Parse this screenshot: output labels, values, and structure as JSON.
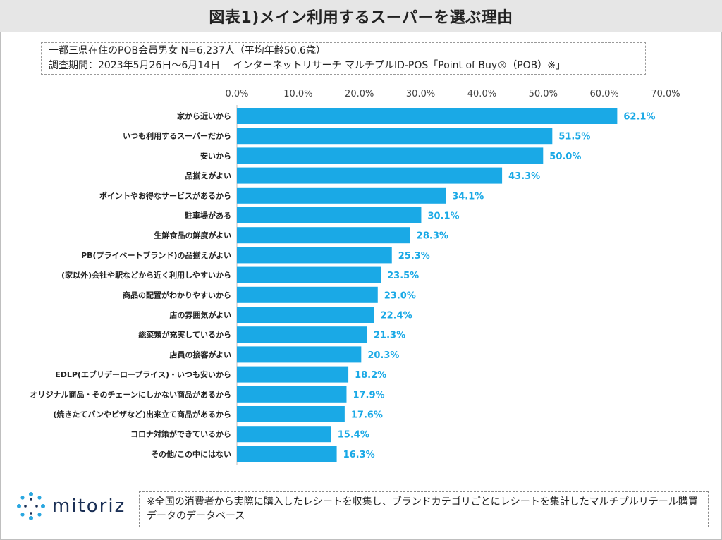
{
  "title": "図表1)メイン利用するスーパーを選ぶ理由",
  "info": {
    "line1": "一都三県在住のPOB会員男女 N=6,237人（平均年齢50.6歳）",
    "line2": "調査期間：2023年5月26日～6月14日　 インターネットリサーチ マルチプルID-POS「Point of Buy®（POB）※」"
  },
  "footer": {
    "logo_text": "mitoriz",
    "logo_icon": "dots-ring-icon",
    "note": "※全国の消費者から実際に購入したレシートを収集し、ブランドカテゴリごとにレシートを集計したマルチプルリテール購買データのデータベース"
  },
  "colors": {
    "bar": "#1aa9e6",
    "label": "#1aa9e6",
    "grid": "#d0d0d0",
    "title_bg": "#e6e6e6"
  },
  "chart_data": {
    "type": "bar",
    "orientation": "horizontal",
    "categories": [
      "家から近いから",
      "いつも利用するスーパーだから",
      "安いから",
      "品揃えがよい",
      "ポイントやお得なサービスがあるから",
      "駐車場がある",
      "生鮮食品の鮮度がよい",
      "PB(プライベートブランド)の品揃えがよい",
      "(家以外)会社や駅などから近く利用しやすいから",
      "商品の配置がわかりやすいから",
      "店の雰囲気がよい",
      "総菜類が充実しているから",
      "店員の接客がよい",
      "EDLP(エブリデーロープライス)・いつも安いから",
      "オリジナル商品・そのチェーンにしかない商品があるから",
      "(焼きたてパンやピザなど)出来立て商品があるから",
      "コロナ対策ができているから",
      "その他/この中にはない"
    ],
    "values": [
      62.1,
      51.5,
      50.0,
      43.3,
      34.1,
      30.1,
      28.3,
      25.3,
      23.5,
      23.0,
      22.4,
      21.3,
      20.3,
      18.2,
      17.9,
      17.6,
      15.4,
      16.3
    ],
    "value_labels": [
      "62.1%",
      "51.5%",
      "50.0%",
      "43.3%",
      "34.1%",
      "30.1%",
      "28.3%",
      "25.3%",
      "23.5%",
      "23.0%",
      "22.4%",
      "21.3%",
      "20.3%",
      "18.2%",
      "17.9%",
      "17.6%",
      "15.4%",
      "16.3%"
    ],
    "xlim": [
      0,
      70
    ],
    "x_ticks": [
      0,
      10,
      20,
      30,
      40,
      50,
      60,
      70
    ],
    "x_tick_labels": [
      "0.0%",
      "10.0%",
      "20.0%",
      "30.0%",
      "40.0%",
      "50.0%",
      "60.0%",
      "70.0%"
    ],
    "axis_position": "top",
    "grid": false,
    "legend": "none"
  }
}
